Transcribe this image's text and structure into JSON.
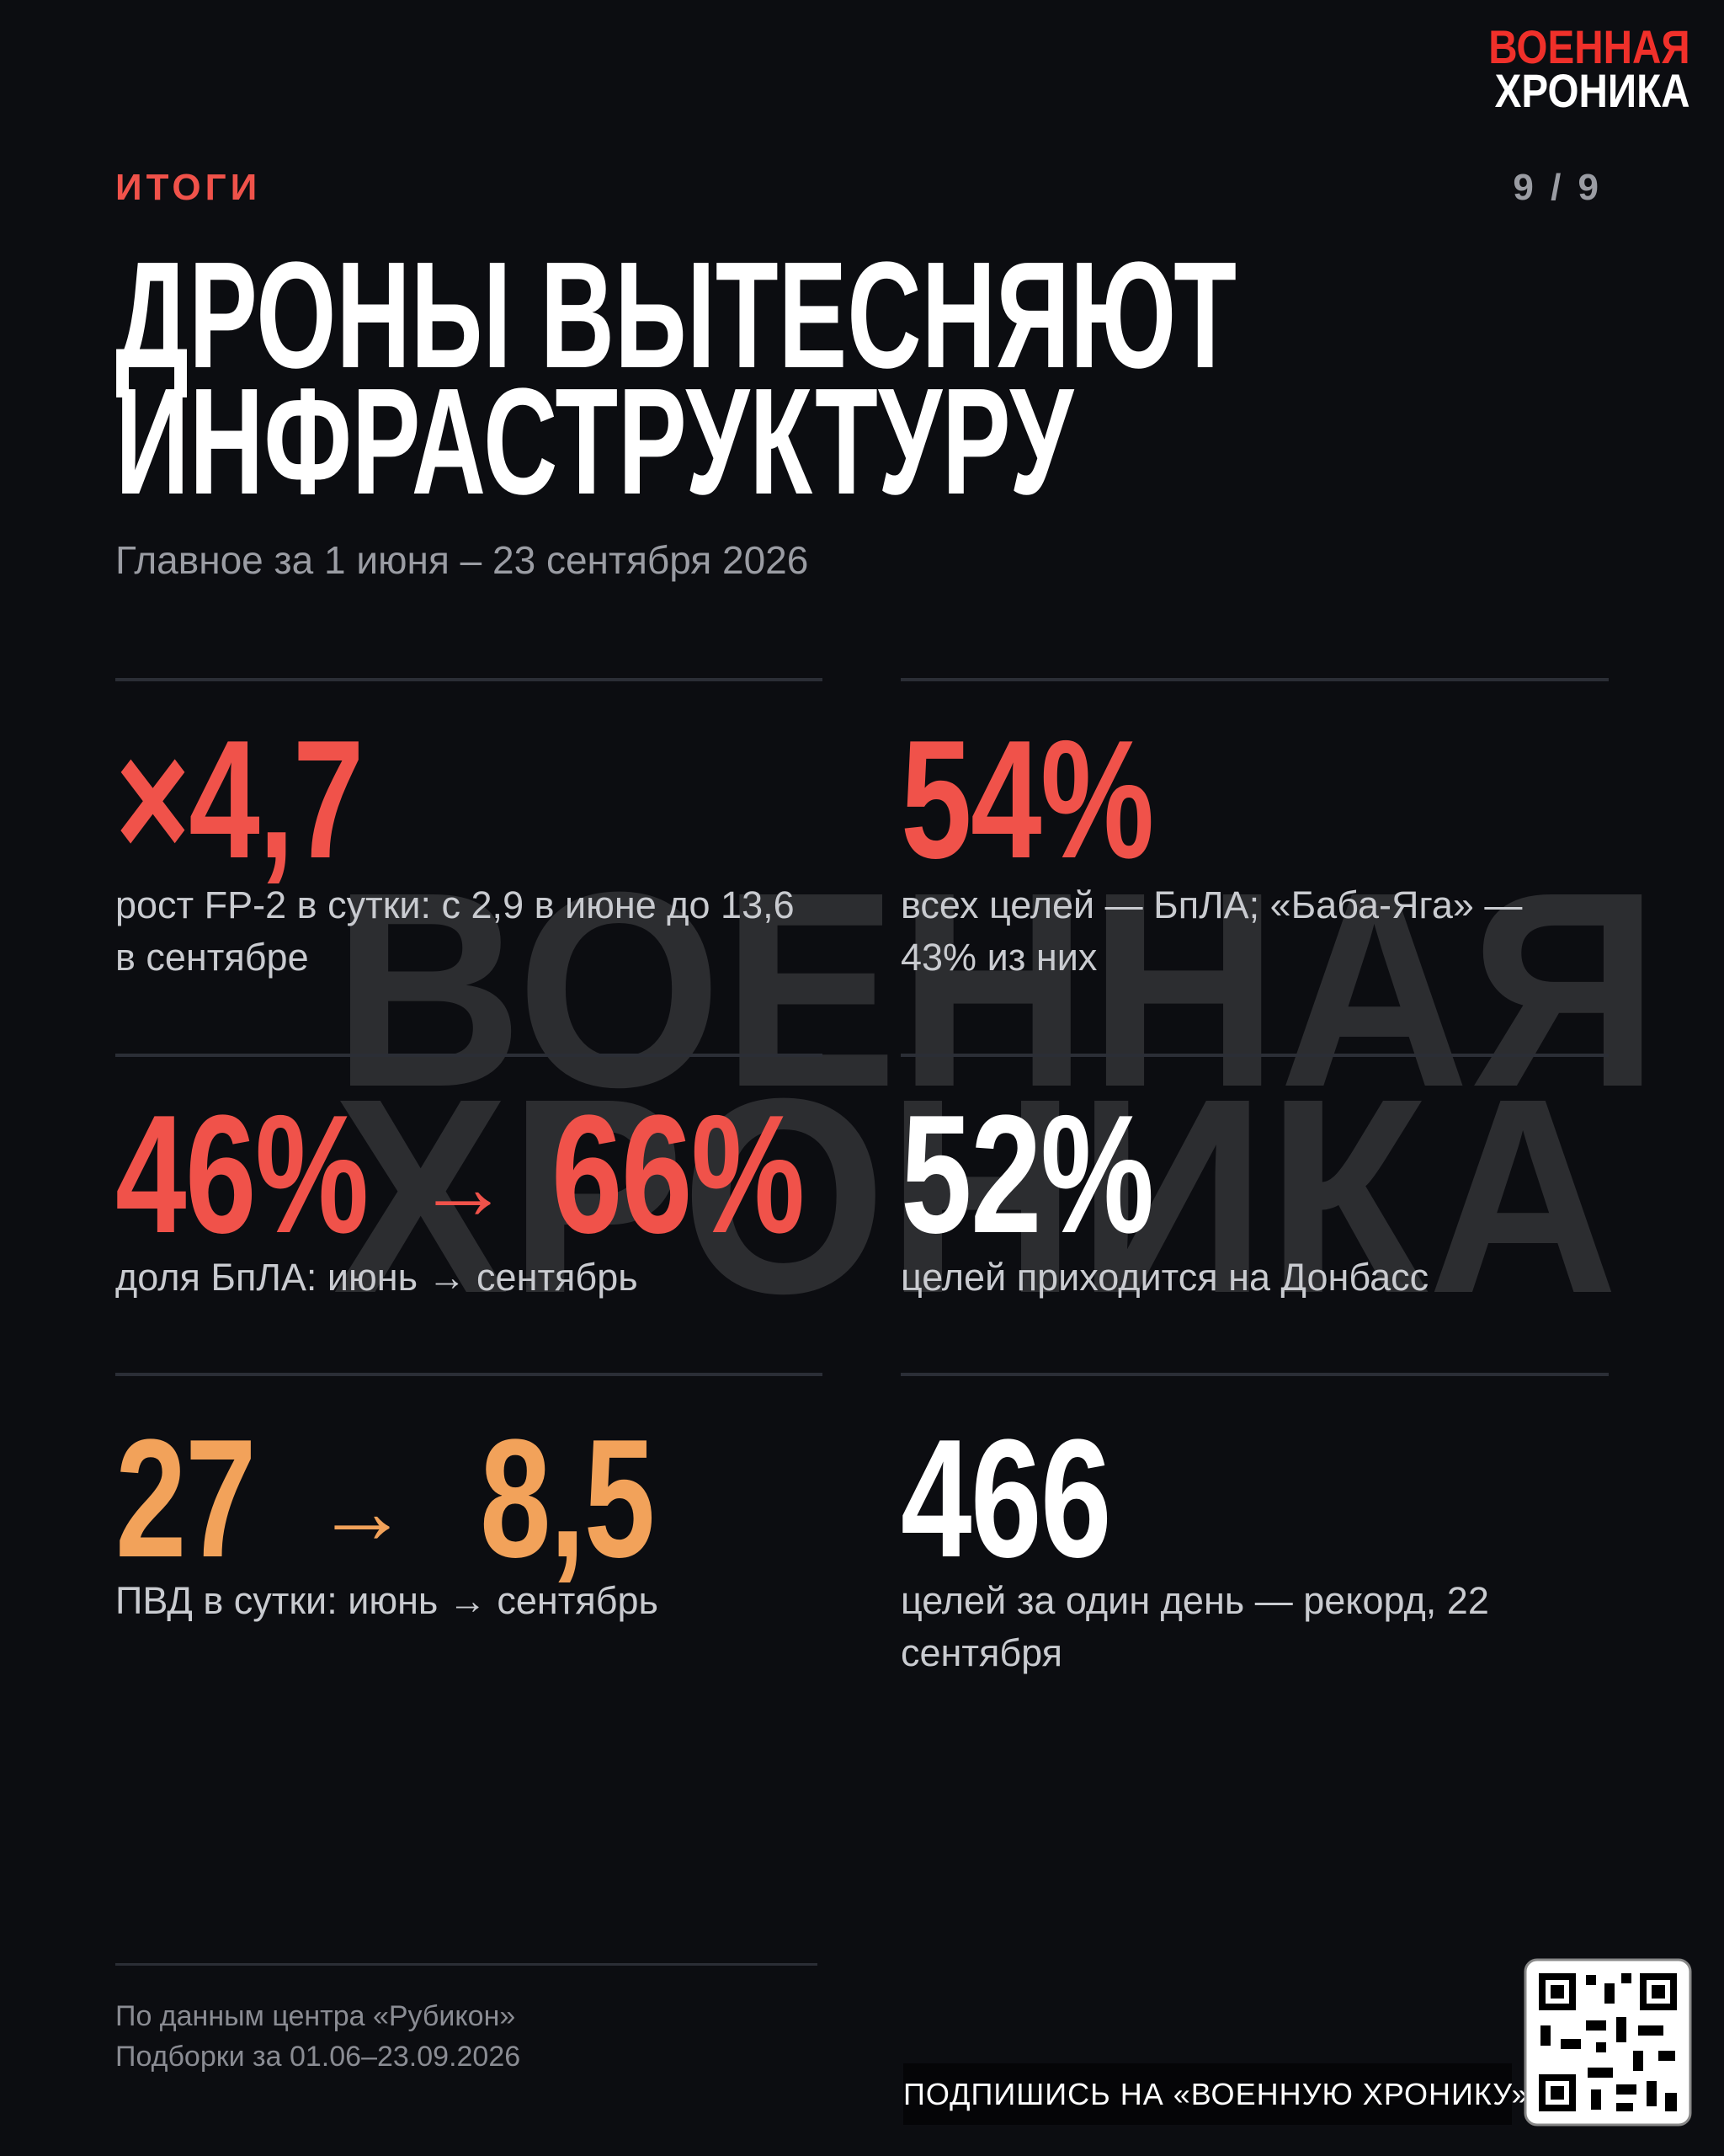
{
  "brand": {
    "line1": "ВОЕННАЯ",
    "line2": "ХРОНИКА"
  },
  "header": {
    "section": "ИТОГИ",
    "page": "9 / 9",
    "title": [
      "ДРОНЫ ВЫТЕСНЯЮТ",
      "ИНФРАСТРУКТУРУ"
    ],
    "subtitle": "Главное за 1 июня – 23 сентября 2026"
  },
  "stats": [
    {
      "value": "×4,7",
      "label": "рост FP-2 в сутки: с 2,9 в июне до 13,6 в сентябре"
    },
    {
      "value": "54%",
      "label": "всех целей — БпЛА; «Баба-Яга» — 43% из них"
    },
    {
      "from": "46%",
      "arrow": "→",
      "to": "66%",
      "label": "доля БпЛА: июнь → сентябрь"
    },
    {
      "value": "52%",
      "label": "целей приходится на Донбасс"
    },
    {
      "from": "27",
      "arrow": "→",
      "to": "8,5",
      "label": "ПВД в сутки: июнь → сентябрь"
    },
    {
      "value": "466",
      "label": "целей за один день — рекорд, 22 сентября"
    }
  ],
  "watermark": {
    "line1": "ВОЕННАЯ",
    "line2": "ХРОНИКА"
  },
  "footer": {
    "source": "По данным центра «Рубикон»",
    "period": "Подборки за 01.06–23.09.2026"
  },
  "subscribe": "ПОДПИШИСЬ НА «ВОЕННУЮ ХРОНИКУ»"
}
